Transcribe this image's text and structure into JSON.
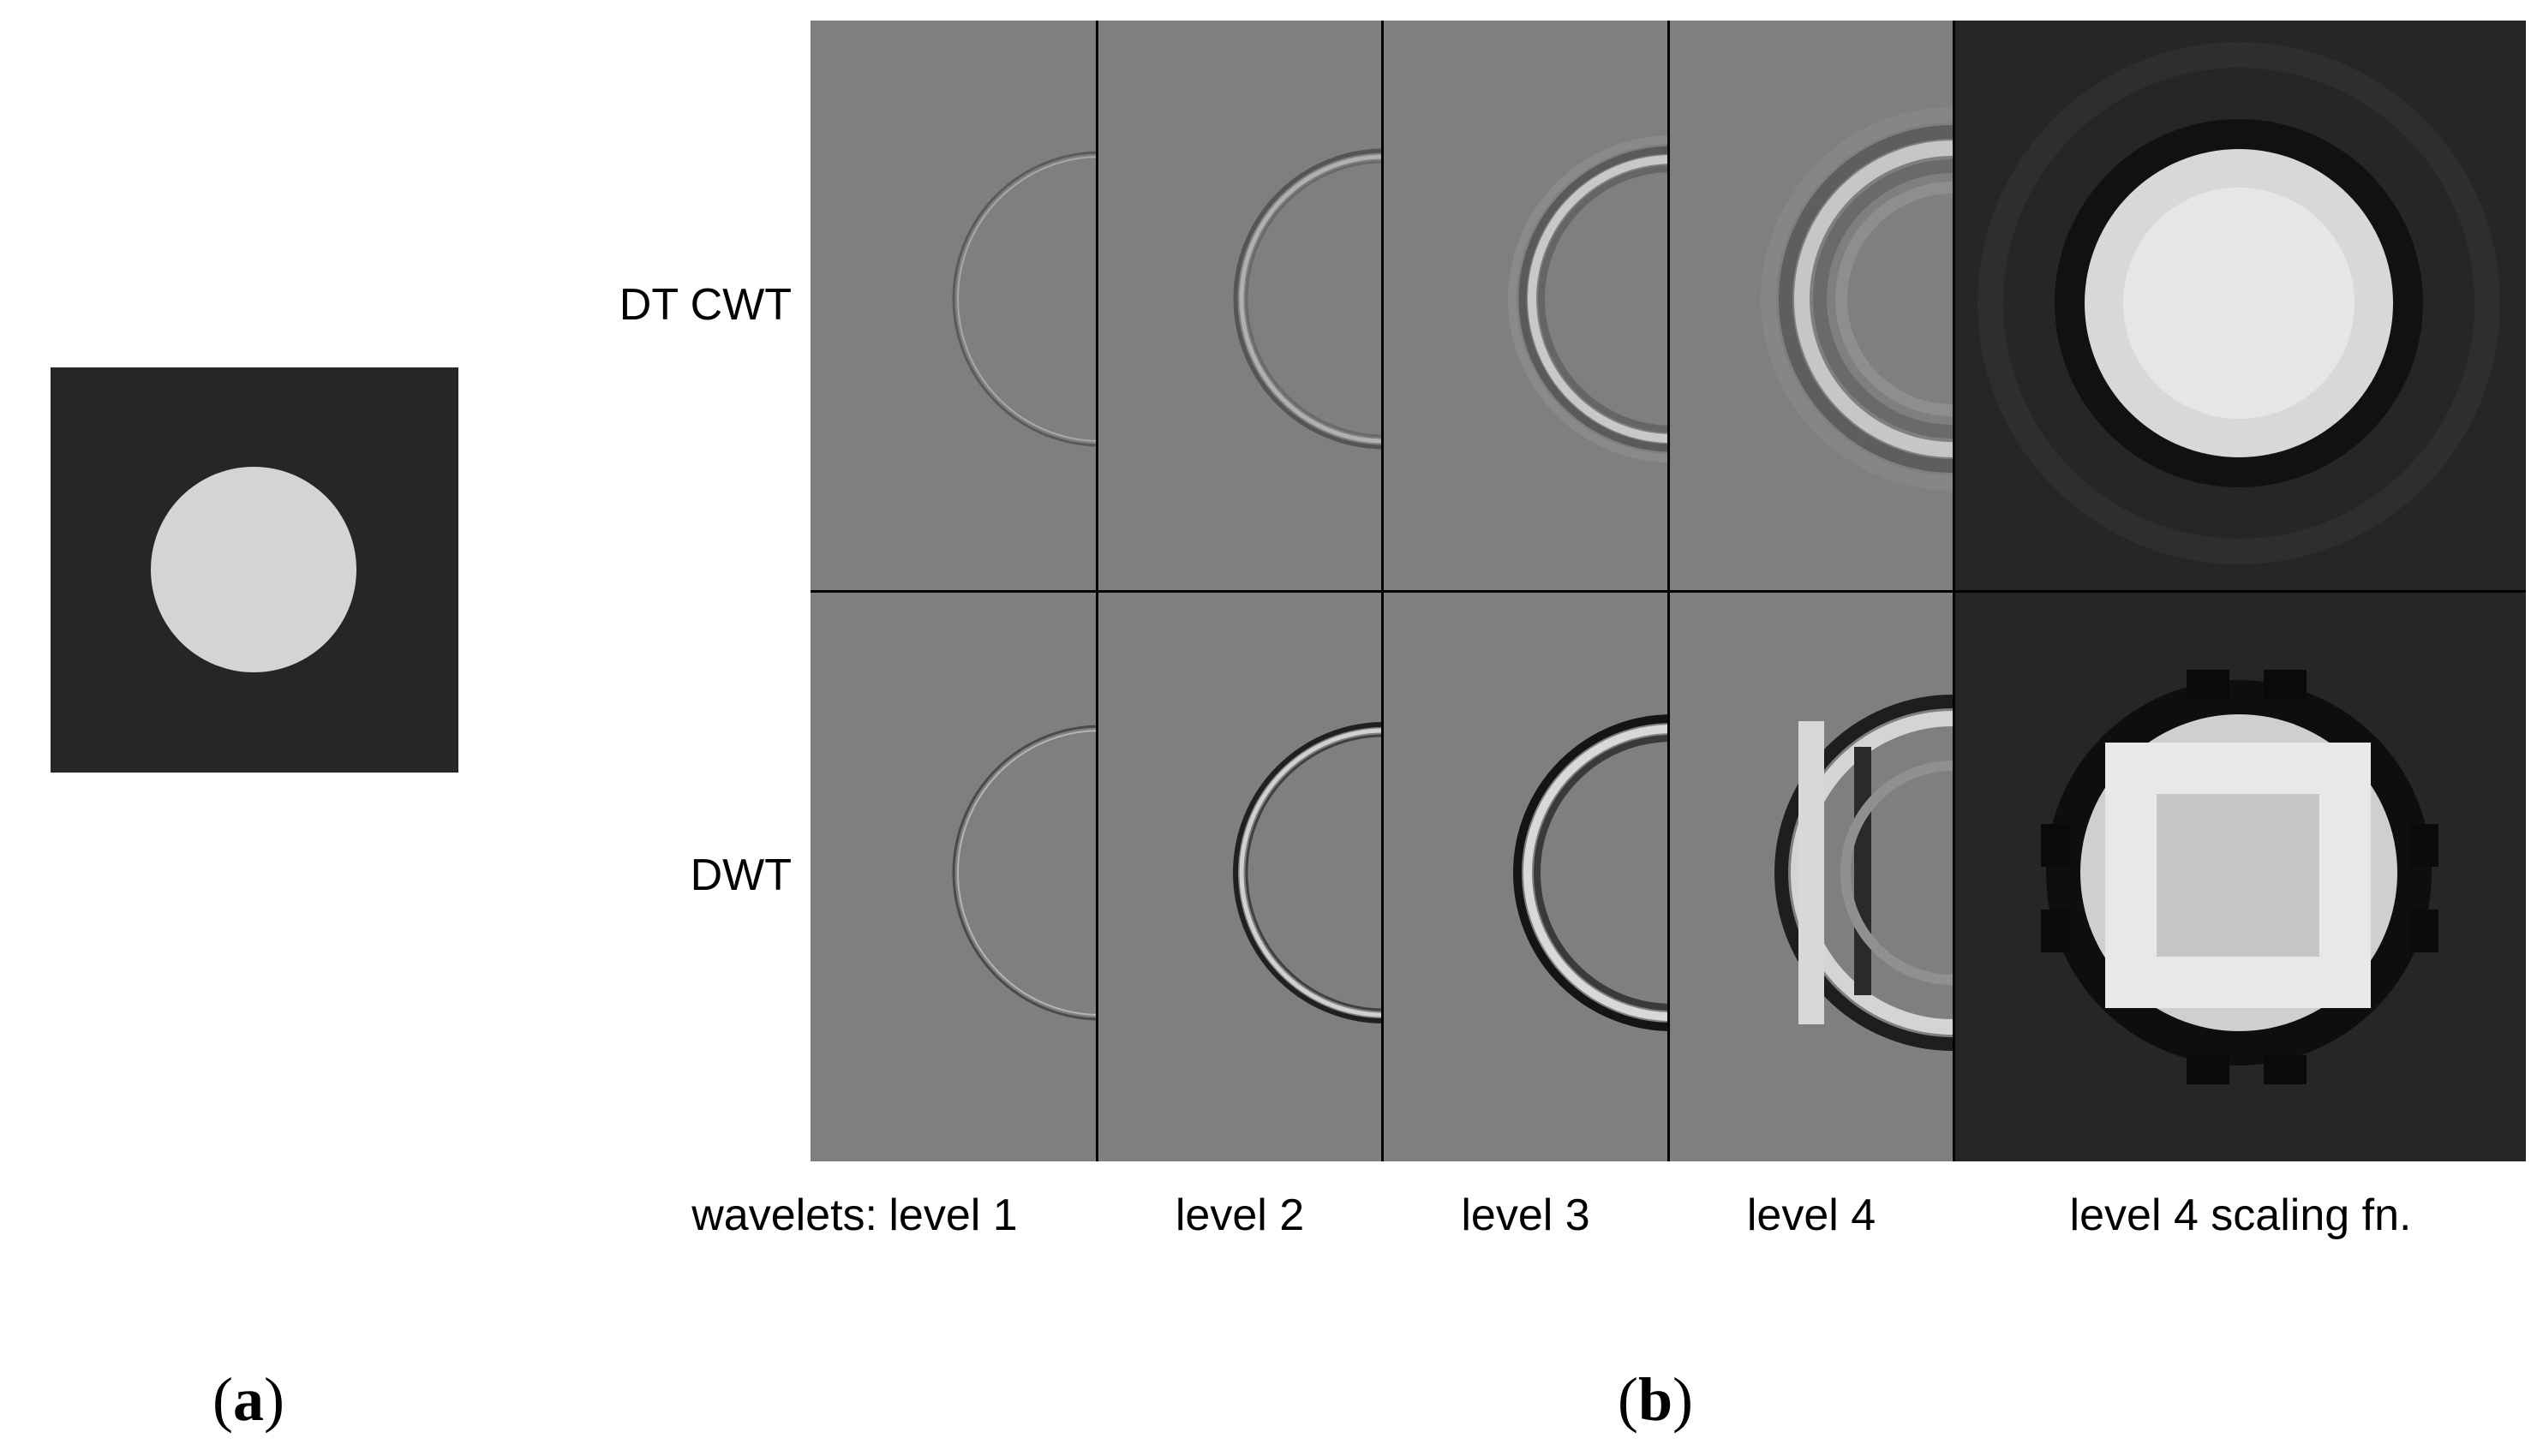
{
  "panel_a": {
    "caption_open": "(",
    "caption_letter": "a",
    "caption_close": ")"
  },
  "panel_b": {
    "caption_open": "(",
    "caption_letter": "b",
    "caption_close": ")",
    "rows": [
      {
        "label": "DT CWT"
      },
      {
        "label": "DWT"
      }
    ],
    "prefix_label": "wavelets:",
    "columns": [
      {
        "label": "level 1"
      },
      {
        "label": "level 2"
      },
      {
        "label": "level 3"
      },
      {
        "label": "level 4"
      },
      {
        "label": "level 4 scaling fn."
      }
    ]
  },
  "colors": {
    "background_gray": "#7f7f7f",
    "dark": "#262626",
    "disk": "#d4d4d4",
    "divider": "#000000"
  }
}
